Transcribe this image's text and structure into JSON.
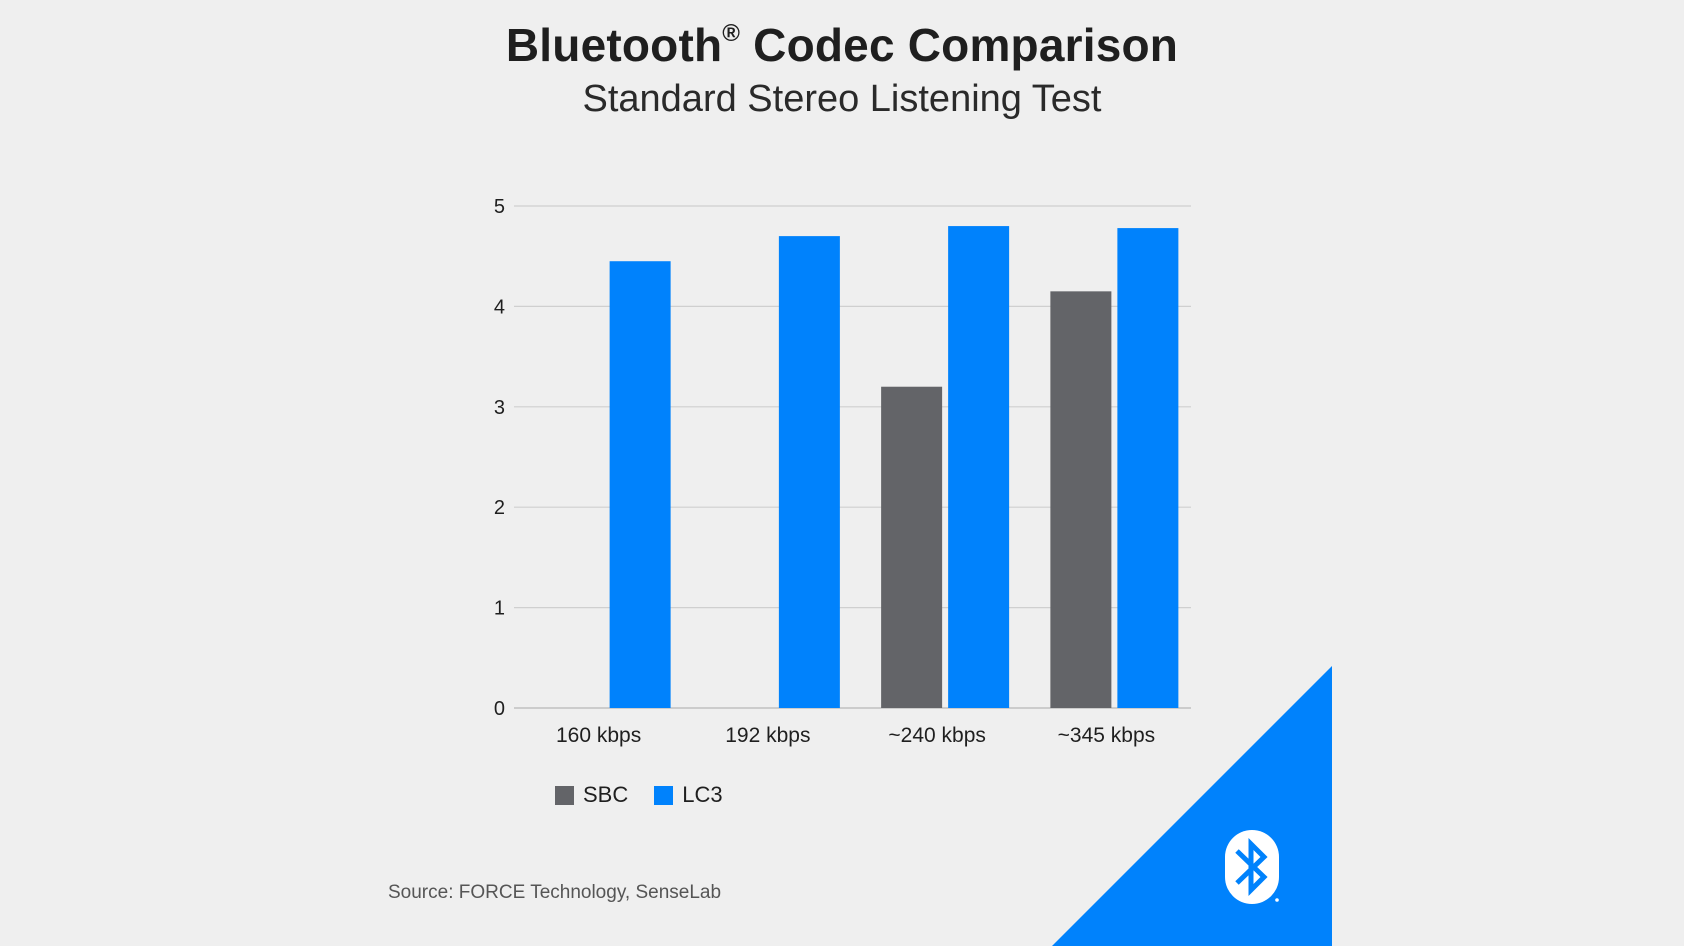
{
  "header": {
    "title": "Bluetooth",
    "title_mark": "®",
    "title_rest": " Codec Comparison",
    "subtitle": "Standard Stereo Listening Test"
  },
  "source": "Source: FORCE Technology, SenseLab",
  "colors": {
    "SBC": "#636468",
    "LC3": "#0082fc",
    "corner": "#0082fc",
    "background": "#efefef"
  },
  "brand_icon": "bluetooth-logo-icon",
  "chart_data": {
    "type": "bar",
    "categories": [
      "160 kbps",
      "192 kbps",
      "~240 kbps",
      "~345 kbps"
    ],
    "series": [
      {
        "name": "SBC",
        "values": [
          null,
          null,
          3.2,
          4.15
        ]
      },
      {
        "name": "LC3",
        "values": [
          4.45,
          4.7,
          4.8,
          4.78
        ]
      }
    ],
    "ylim": [
      0,
      5
    ],
    "yticks": [
      "0",
      "1",
      "2",
      "3",
      "4",
      "5"
    ],
    "grid": true,
    "legend": "bottom-left",
    "title": "Bluetooth® Codec Comparison",
    "subtitle": "Standard Stereo Listening Test"
  }
}
